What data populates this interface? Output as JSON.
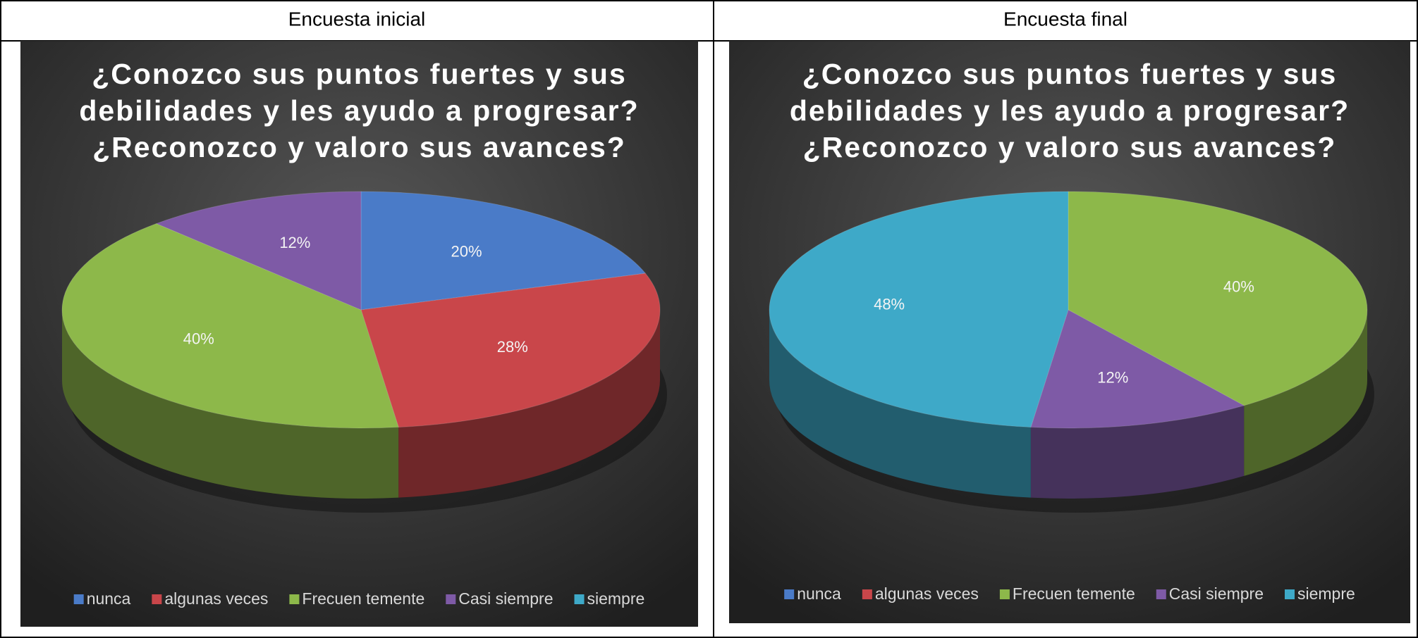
{
  "table_headers": [
    "Encuesta inicial",
    "Encuesta final"
  ],
  "chart_data": [
    {
      "type": "pie3d",
      "title": [
        "¿Conozco sus puntos fuertes y sus",
        "debilidades y les ayudo a progresar?",
        "¿Reconozco y valoro sus avances?"
      ],
      "categories": [
        "nunca",
        "algunas veces",
        "Frecuen temente",
        "Casi siempre",
        "siempre"
      ],
      "values": [
        20,
        28,
        40,
        12,
        0
      ],
      "value_labels": [
        "20%",
        "28%",
        "40%",
        "12%",
        null
      ],
      "colors": [
        "#4a7bc8",
        "#c9464a",
        "#8db84a",
        "#7e5aa6",
        "#3ea9c8"
      ],
      "legend": "bottom"
    },
    {
      "type": "pie3d",
      "title": [
        "¿Conozco sus puntos fuertes y sus",
        "debilidades y les ayudo a progresar?",
        "¿Reconozco y valoro sus avances?"
      ],
      "categories": [
        "nunca",
        "algunas veces",
        "Frecuen temente",
        "Casi siempre",
        "siempre"
      ],
      "values": [
        0,
        0,
        40,
        12,
        48
      ],
      "value_labels": [
        null,
        null,
        "40%",
        "12%",
        "48%"
      ],
      "colors": [
        "#4a7bc8",
        "#c9464a",
        "#8db84a",
        "#7e5aa6",
        "#3ea9c8"
      ],
      "legend": "bottom"
    }
  ]
}
